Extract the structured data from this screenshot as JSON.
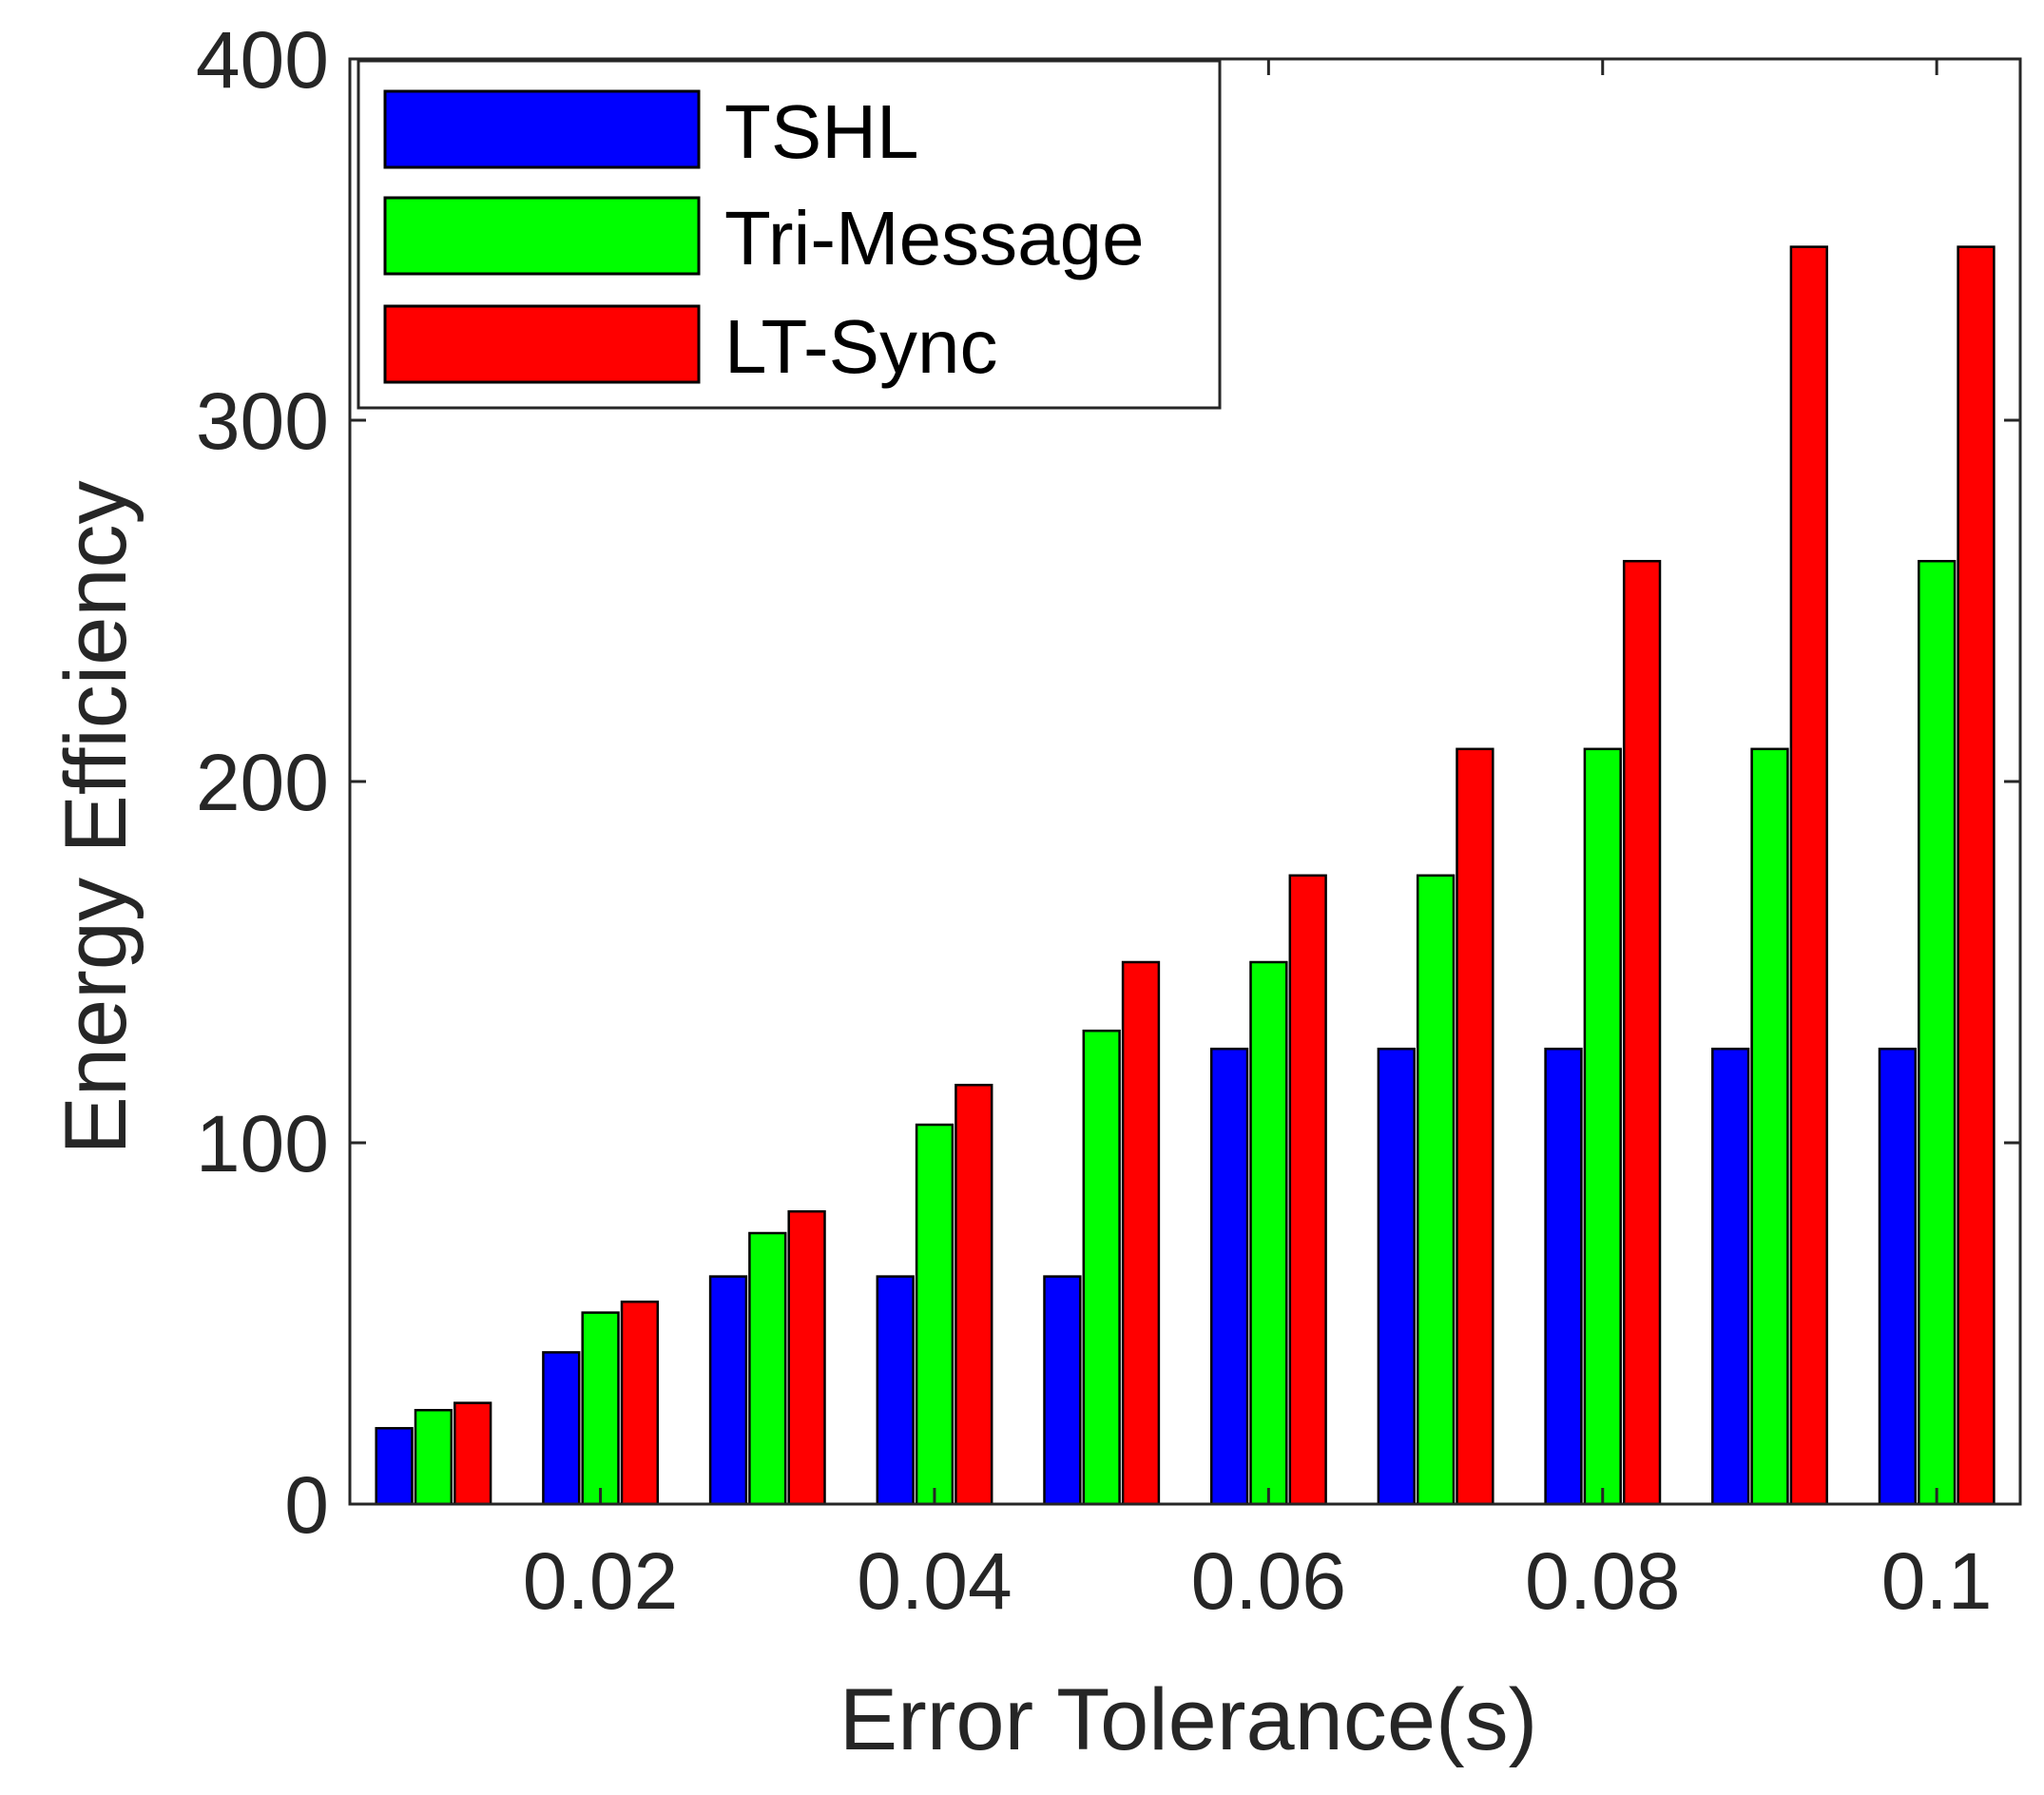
{
  "chart_data": {
    "type": "bar",
    "title": "",
    "xlabel": "Error Tolerance(s)",
    "ylabel": "Energy Efficiency",
    "x": [
      0.01,
      0.02,
      0.03,
      0.04,
      0.05,
      0.06,
      0.07,
      0.08,
      0.09,
      0.1
    ],
    "xlim": [
      0.005,
      0.105
    ],
    "ylim": [
      0,
      400
    ],
    "xticks": [
      {
        "value": 0.02,
        "label": "0.02"
      },
      {
        "value": 0.04,
        "label": "0.04"
      },
      {
        "value": 0.06,
        "label": "0.06"
      },
      {
        "value": 0.08,
        "label": "0.08"
      },
      {
        "value": 0.1,
        "label": "0.1"
      }
    ],
    "yticks": [
      {
        "value": 0,
        "label": "0"
      },
      {
        "value": 100,
        "label": "100"
      },
      {
        "value": 200,
        "label": "200"
      },
      {
        "value": 300,
        "label": "300"
      },
      {
        "value": 400,
        "label": "400"
      }
    ],
    "grid": false,
    "legend_position": "top-left",
    "series": [
      {
        "name": "TSHL",
        "color": "#0000ff",
        "values": [
          21,
          42,
          63,
          63,
          63,
          126,
          126,
          126,
          126,
          126
        ]
      },
      {
        "name": "Tri-Message",
        "color": "#00ff00",
        "values": [
          26,
          53,
          75,
          105,
          131,
          150,
          174,
          209,
          209,
          261
        ]
      },
      {
        "name": "LT-Sync",
        "color": "#ff0000",
        "values": [
          28,
          56,
          81,
          116,
          150,
          174,
          209,
          261,
          348,
          348
        ]
      }
    ]
  }
}
